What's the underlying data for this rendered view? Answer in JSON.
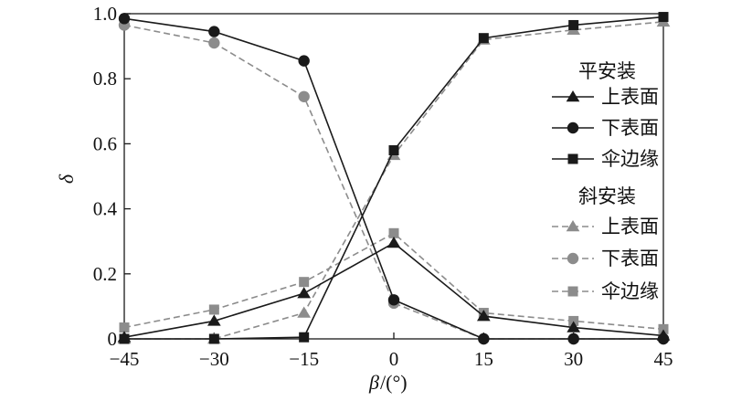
{
  "chart_data": {
    "type": "line",
    "x": [
      -45,
      -30,
      -15,
      0,
      15,
      30,
      45
    ],
    "xticks": [
      "−45",
      "−30",
      "−15",
      "0",
      "15",
      "30",
      "45"
    ],
    "yticks": [
      "0",
      "0.2",
      "0.4",
      "0.6",
      "0.8",
      "1.0"
    ],
    "xlim": [
      -45,
      45
    ],
    "ylim": [
      0,
      1.0
    ],
    "xlabel": "β",
    "xlabel_unit": "/(°)",
    "ylabel": "δ",
    "grid": false,
    "legend_position": "right",
    "groups": [
      {
        "title": "平安装",
        "linestyle": "solid",
        "color": "#1a1a1a"
      },
      {
        "title": "斜安装",
        "linestyle": "dashed",
        "color": "#8c8c8c"
      }
    ],
    "series": [
      {
        "name": "上表面",
        "group": 0,
        "marker": "triangle",
        "values": [
          0.005,
          0.055,
          0.14,
          0.295,
          0.07,
          0.035,
          0.01
        ]
      },
      {
        "name": "下表面",
        "group": 0,
        "marker": "circle",
        "values": [
          0.985,
          0.945,
          0.855,
          0.12,
          0.0,
          0.0,
          0.0
        ]
      },
      {
        "name": "伞边缘",
        "group": 0,
        "marker": "square",
        "values": [
          0.0,
          0.0,
          0.005,
          0.58,
          0.925,
          0.965,
          0.99
        ]
      },
      {
        "name": "上表面",
        "group": 1,
        "marker": "triangle",
        "values": [
          0.0,
          0.0,
          0.08,
          0.565,
          0.92,
          0.95,
          0.975
        ]
      },
      {
        "name": "下表面",
        "group": 1,
        "marker": "circle",
        "values": [
          0.965,
          0.91,
          0.745,
          0.11,
          0.0,
          0.0,
          0.0
        ]
      },
      {
        "name": "伞边缘",
        "group": 1,
        "marker": "square",
        "values": [
          0.035,
          0.09,
          0.175,
          0.325,
          0.08,
          0.055,
          0.03
        ]
      }
    ]
  }
}
